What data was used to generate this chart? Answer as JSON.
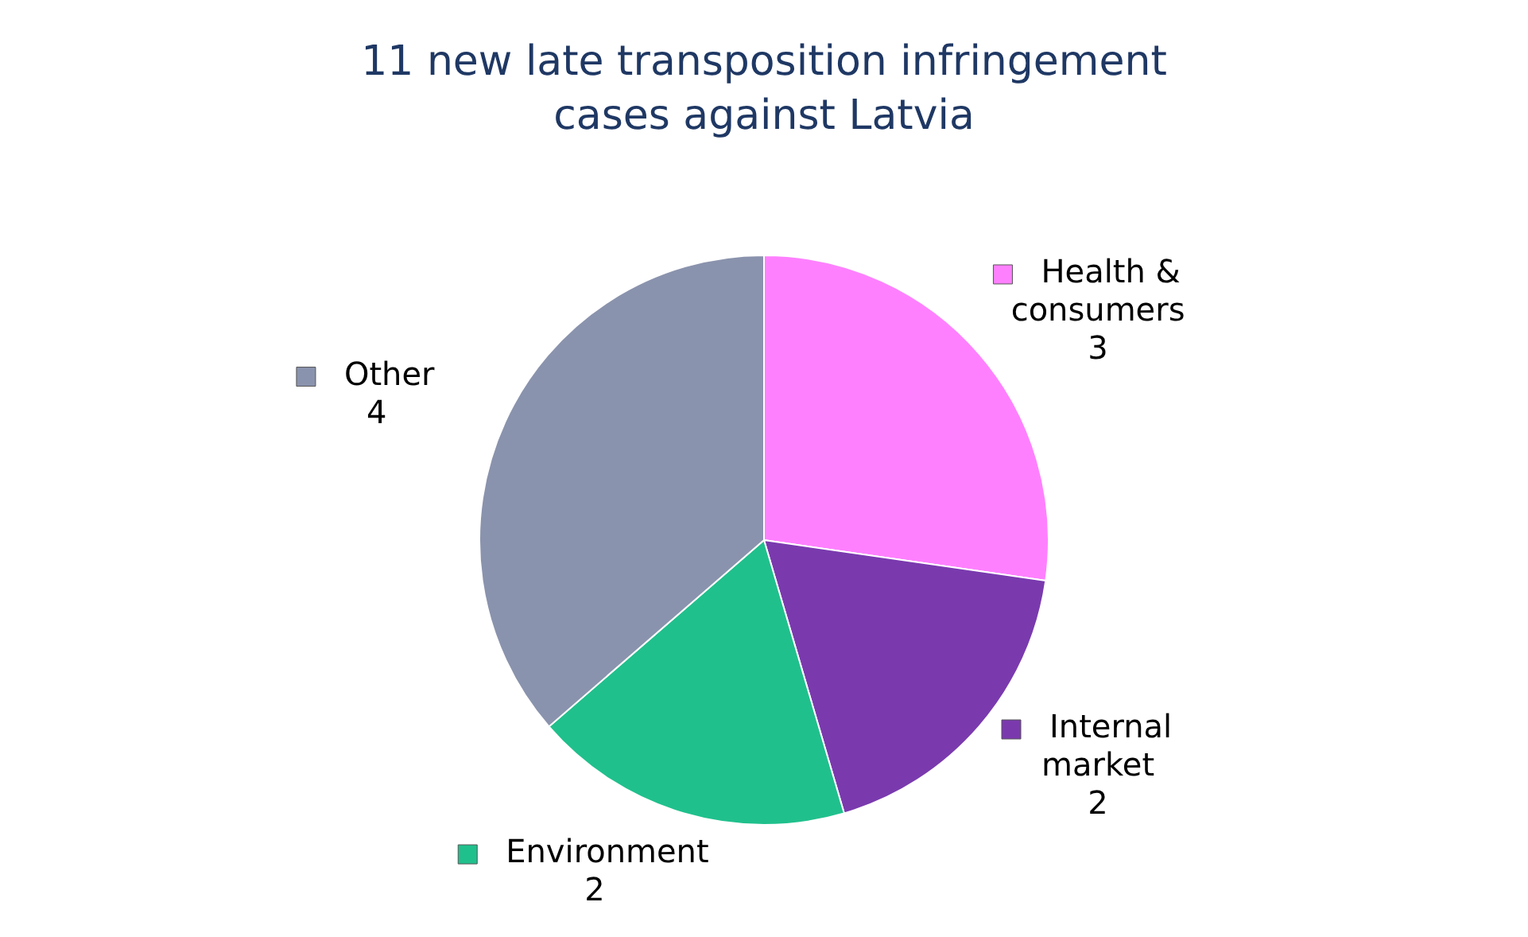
{
  "chart_data": {
    "type": "pie",
    "title": "11 new late transposition infringement cases against Latvia",
    "categories": [
      "Health & consumers",
      "Internal market",
      "Environment",
      "Other"
    ],
    "values": [
      3,
      2,
      2,
      4
    ],
    "colors": [
      "#ff80ff",
      "#7a3aae",
      "#20c08c",
      "#8a93ad"
    ],
    "data_labels": true,
    "legend": "right"
  }
}
